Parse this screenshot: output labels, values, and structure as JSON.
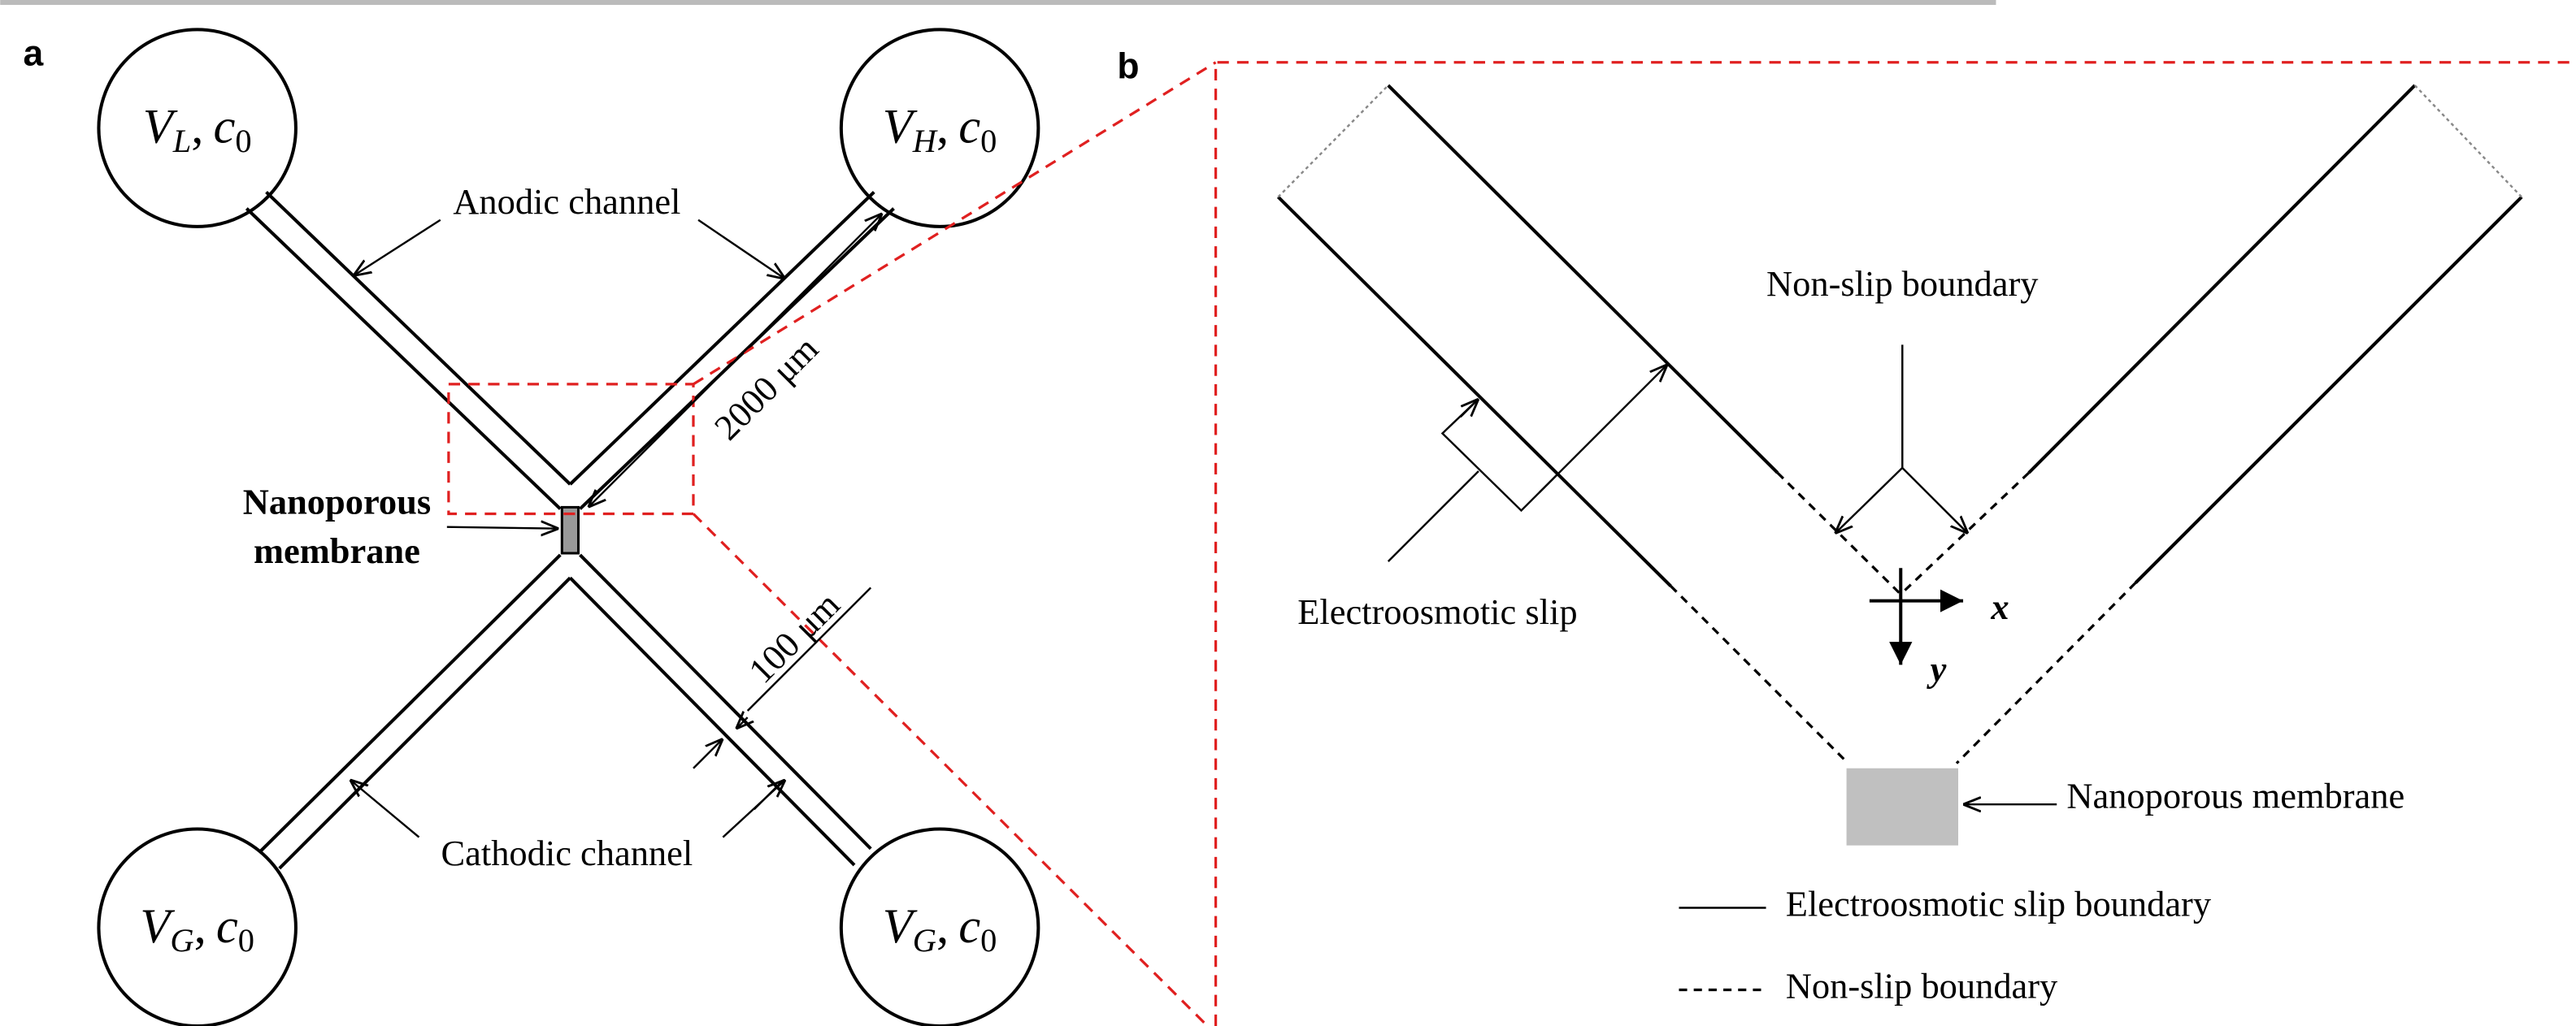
{
  "panel_a": {
    "label": "a",
    "reservoirs": [
      {
        "potential": "V",
        "potential_sub": "L",
        "separator": ",",
        "concentration": "c",
        "concentration_sub": "0"
      },
      {
        "potential": "V",
        "potential_sub": "H",
        "separator": ",",
        "concentration": "c",
        "concentration_sub": "0"
      },
      {
        "potential": "V",
        "potential_sub": "G",
        "separator": ",",
        "concentration": "c",
        "concentration_sub": "0"
      },
      {
        "potential": "V",
        "potential_sub": "G",
        "separator": ",",
        "concentration": "c",
        "concentration_sub": "0"
      }
    ],
    "anodic_label": "Anodic channel",
    "cathodic_label": "Cathodic channel",
    "length_label": "2000 μm",
    "width_label": "100 μm",
    "membrane_label": [
      "Nanoporous",
      "membrane"
    ]
  },
  "panel_b": {
    "label": "b",
    "non_slip_label": "Non-slip boundary",
    "slip_label": "Electroosmotic slip",
    "x_axis": "x",
    "y_axis": "y",
    "membrane_label": "Nanoporous membrane",
    "legend": [
      {
        "label": "Electroosmotic slip boundary"
      },
      {
        "label": "Non-slip boundary"
      }
    ]
  }
}
